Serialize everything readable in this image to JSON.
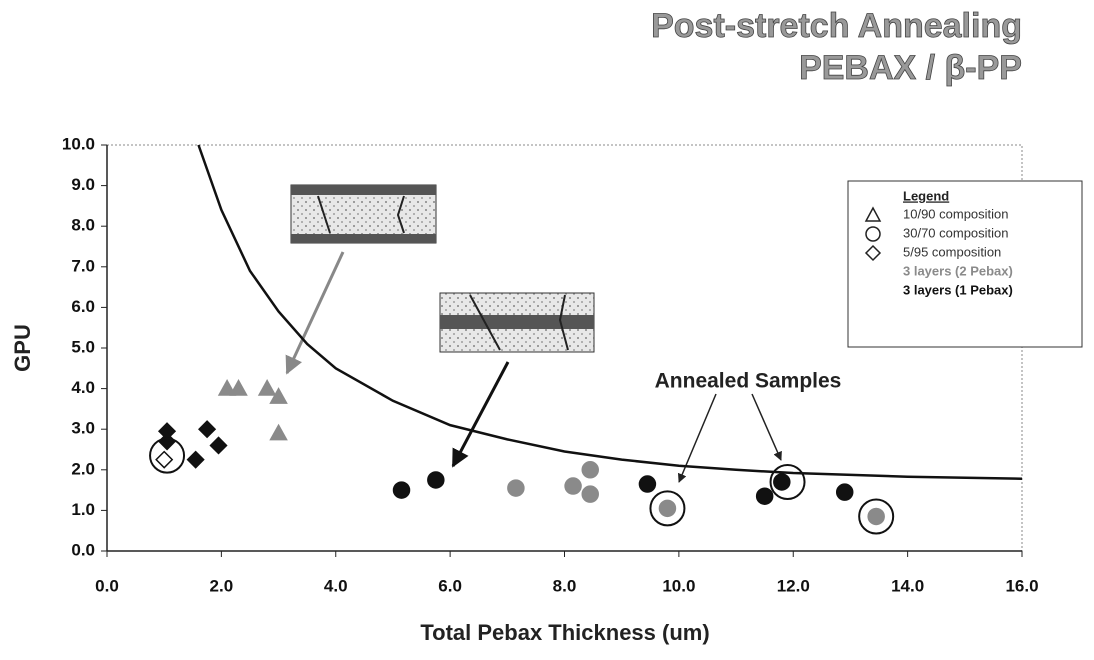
{
  "chart_data": {
    "type": "scatter",
    "title": [
      "Post-stretch Annealing",
      "PEBAX / β-PP"
    ],
    "x_label": "Total Pebax Thickness (um)",
    "y_label": "GPU",
    "xlim": [
      0,
      16
    ],
    "ylim": [
      0,
      10
    ],
    "xticks": [
      {
        "value": 0,
        "label": "0.0"
      },
      {
        "value": 2,
        "label": "2.0"
      },
      {
        "value": 4,
        "label": "4.0"
      },
      {
        "value": 6,
        "label": "6.0"
      },
      {
        "value": 8,
        "label": "8.0"
      },
      {
        "value": 10,
        "label": "10.0"
      },
      {
        "value": 12,
        "label": "12.0"
      },
      {
        "value": 14,
        "label": "14.0"
      },
      {
        "value": 16,
        "label": "16.0"
      }
    ],
    "yticks": [
      {
        "value": 0,
        "label": "0.0"
      },
      {
        "value": 1,
        "label": "1.0"
      },
      {
        "value": 2,
        "label": "2.0"
      },
      {
        "value": 3,
        "label": "3.0"
      },
      {
        "value": 4,
        "label": "4.0"
      },
      {
        "value": 5,
        "label": "5.0"
      },
      {
        "value": 6,
        "label": "6.0"
      },
      {
        "value": 7,
        "label": "7.0"
      },
      {
        "value": 8,
        "label": "8.0"
      },
      {
        "value": 9,
        "label": "9.0"
      },
      {
        "value": 10,
        "label": "10.0"
      }
    ],
    "legend_title": "Legend",
    "series": [
      {
        "name": "10/90 composition",
        "marker": "triangle",
        "x": [
          2.1,
          2.3,
          2.8,
          3.0,
          3.0
        ],
        "values": [
          4.0,
          4.0,
          4.0,
          3.8,
          2.9
        ],
        "colors": [
          "#8a8a8a",
          "#8a8a8a",
          "#8a8a8a",
          "#8a8a8a",
          "#8a8a8a"
        ]
      },
      {
        "name": "30/70 composition",
        "marker": "circle",
        "x": [
          5.15,
          5.75,
          9.45,
          11.5,
          11.8,
          12.9,
          7.15,
          8.15,
          8.45,
          8.45,
          9.8,
          13.45
        ],
        "values": [
          1.5,
          1.75,
          1.65,
          1.35,
          1.7,
          1.45,
          1.55,
          1.6,
          2.0,
          1.4,
          1.05,
          0.85
        ],
        "colors": [
          "#111111",
          "#111111",
          "#111111",
          "#111111",
          "#111111",
          "#111111",
          "#8a8a8a",
          "#8a8a8a",
          "#8a8a8a",
          "#8a8a8a",
          "#8a8a8a",
          "#8a8a8a"
        ]
      },
      {
        "name": "5/95 composition",
        "marker": "diamond",
        "x": [
          1.05,
          1.05,
          1.55,
          1.75,
          1.95,
          1.0
        ],
        "values": [
          2.95,
          2.7,
          2.25,
          3.0,
          2.6,
          2.25
        ],
        "colors": [
          "#111111",
          "#111111",
          "#111111",
          "#111111",
          "#111111",
          "#ffffff"
        ]
      }
    ],
    "layer_notes": [
      {
        "text": "3 layers (2 Pebax)",
        "color": "#8a8a8a"
      },
      {
        "text": "3 layers (1 Pebax)",
        "color": "#111111"
      }
    ],
    "curve": {
      "x": [
        1.6,
        2,
        2.5,
        3,
        3.5,
        4,
        5,
        6,
        7,
        8,
        9,
        10,
        11,
        12,
        14,
        16
      ],
      "values": [
        10,
        8.4,
        6.9,
        5.9,
        5.1,
        4.5,
        3.7,
        3.1,
        2.75,
        2.45,
        2.25,
        2.1,
        2.0,
        1.92,
        1.83,
        1.78
      ]
    },
    "annealed": {
      "label": "Annealed Samples",
      "x": [
        1.05,
        9.8,
        11.9,
        13.45
      ],
      "y": [
        2.35,
        1.05,
        1.7,
        0.85
      ]
    }
  }
}
